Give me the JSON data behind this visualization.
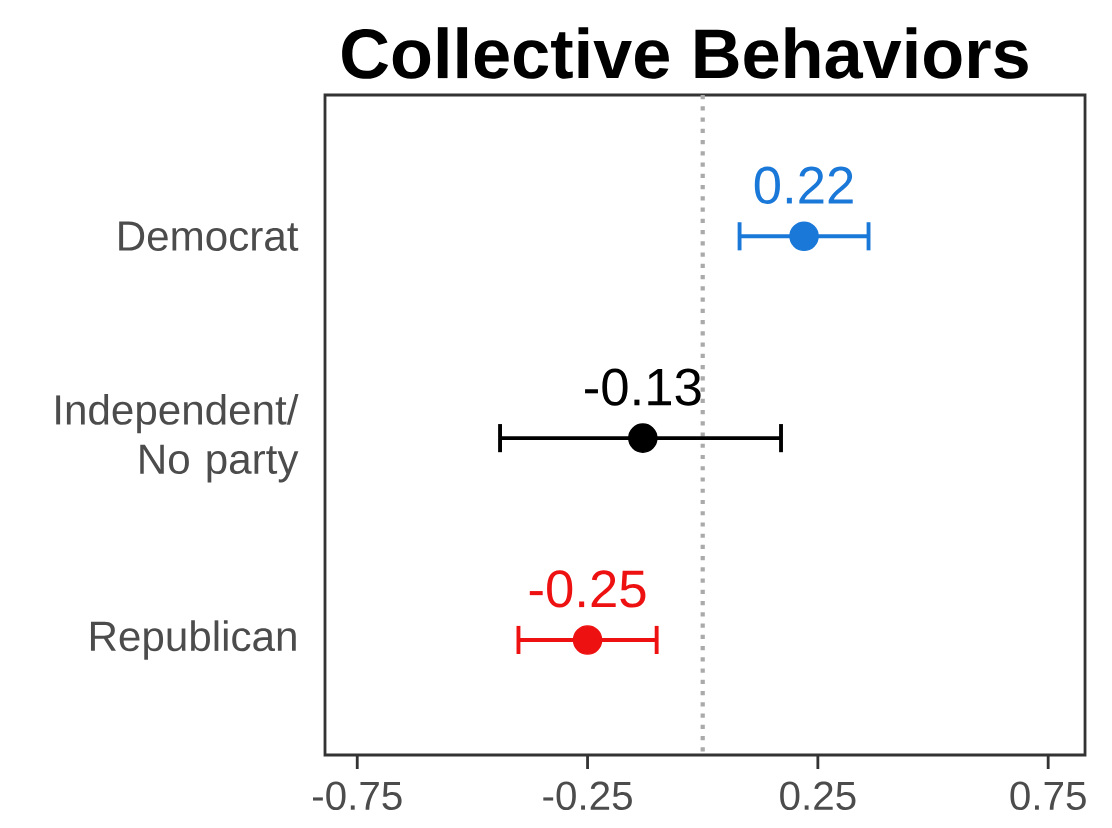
{
  "chart_data": {
    "type": "scatter",
    "orientation": "horizontal",
    "title": "Collective Behaviors",
    "categories": [
      "Democrat",
      "Independent/ No party",
      "Republican"
    ],
    "values": [
      0.22,
      -0.13,
      -0.25
    ],
    "colors": [
      "#1a78d8",
      "#000000",
      "#ee1111"
    ],
    "errors": [
      [
        0.08,
        0.36
      ],
      [
        -0.44,
        0.17
      ],
      [
        -0.4,
        -0.1
      ]
    ],
    "data_labels": true,
    "xlim": [
      -0.82,
      0.83
    ],
    "xticks": [
      -0.75,
      -0.25,
      0.25,
      0.75
    ],
    "ref_lines": [
      {
        "axis": "x",
        "value": 0,
        "color": "#aaaaaa",
        "line_style": "dotted"
      }
    ],
    "grid": false
  }
}
